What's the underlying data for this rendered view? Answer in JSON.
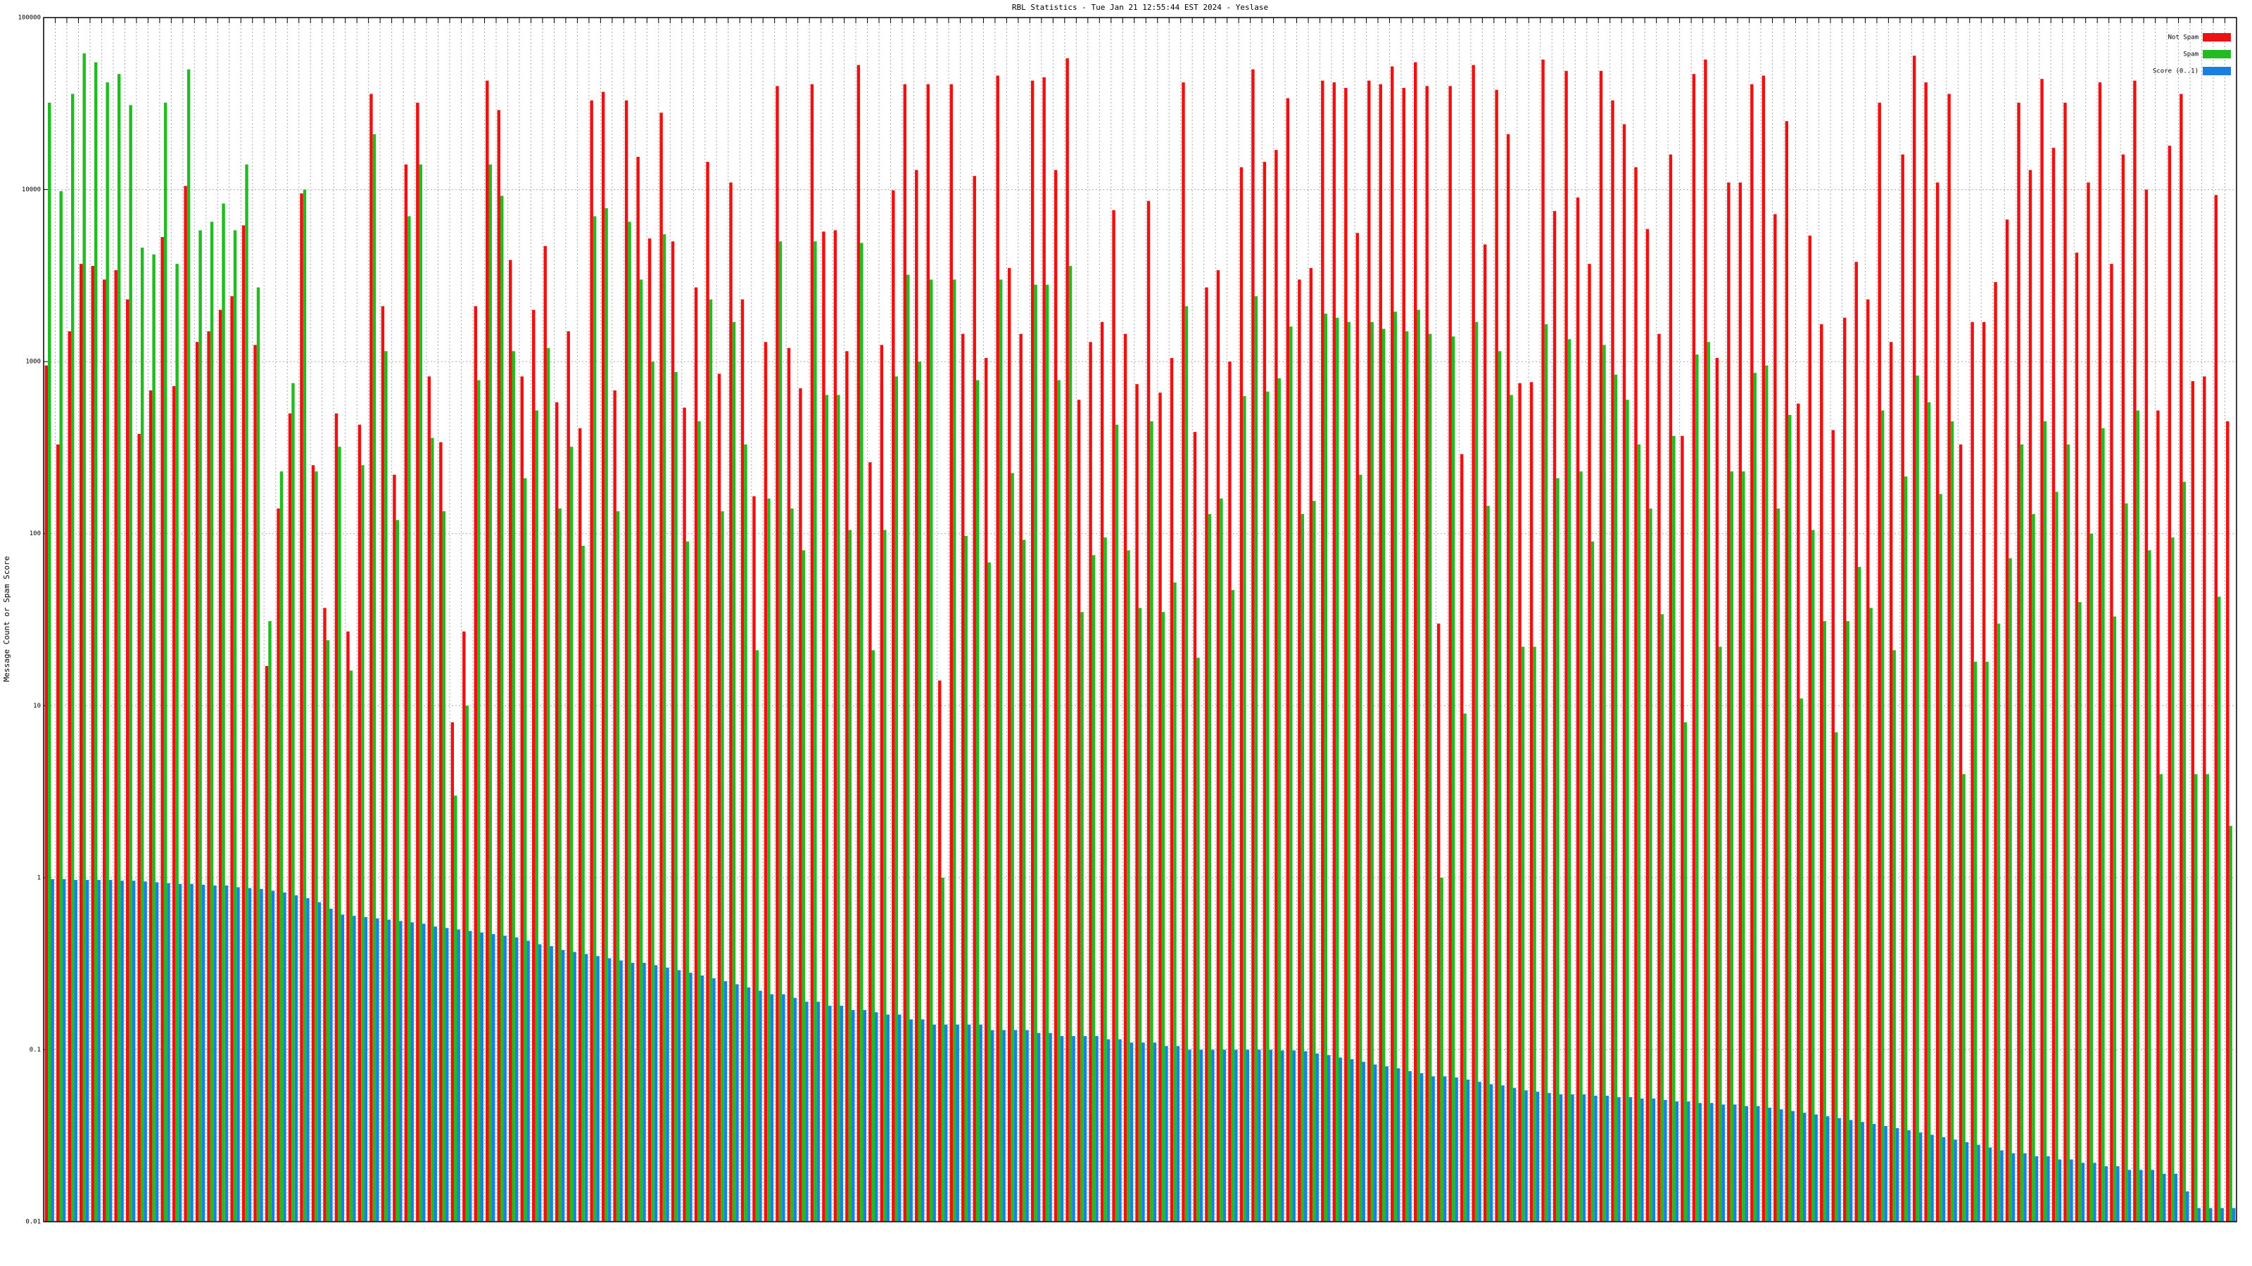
{
  "chart_data": {
    "type": "bar",
    "title": "RBL Statistics - Tue Jan 21 12:55:44 EST 2024 - Yeslase",
    "y_label": "Message Count or Spam Score",
    "yscale": "log",
    "grid": true,
    "legend": "upper right",
    "ylim": [
      0.01,
      100000
    ],
    "yticks": [
      0.01,
      0.1,
      1,
      10,
      100,
      1000,
      10000,
      100000
    ],
    "categories": [
      null,
      null,
      null,
      null,
      null,
      null,
      null,
      null,
      null,
      null,
      null,
      null,
      null,
      null,
      null,
      null,
      null,
      null,
      null,
      null,
      null,
      null,
      null,
      null,
      null,
      null,
      null,
      null,
      null,
      null,
      null,
      null,
      null,
      null,
      null,
      null,
      null,
      null,
      null,
      null,
      null,
      null,
      null,
      null,
      null,
      null,
      null,
      null,
      null,
      null,
      null,
      null,
      null,
      null,
      null,
      null,
      null,
      null,
      null,
      null,
      null,
      null,
      null,
      null,
      null,
      null,
      null,
      null,
      null,
      null,
      null,
      null,
      null,
      null,
      null,
      null,
      null,
      null,
      null,
      null,
      null,
      null,
      null,
      null,
      null,
      null,
      null,
      null,
      null,
      null,
      null,
      null,
      null,
      null,
      null,
      null,
      null,
      null,
      null,
      null,
      null,
      null,
      null,
      null,
      null,
      null,
      null,
      null,
      null,
      null,
      null,
      null,
      null,
      null,
      null,
      null,
      null,
      null,
      null,
      null,
      null,
      null,
      null,
      null,
      null,
      null,
      null,
      null,
      null,
      null,
      null,
      null,
      null,
      null,
      null,
      null,
      null,
      null,
      null,
      null,
      null,
      null,
      null,
      null,
      null,
      null,
      null,
      null,
      null,
      null,
      null,
      null,
      null,
      null,
      null,
      null,
      null,
      null,
      null,
      null,
      null,
      null,
      null,
      null,
      null,
      null,
      null,
      null,
      null,
      null,
      null,
      null,
      null,
      null,
      null,
      null,
      null,
      null,
      null,
      null,
      null,
      null,
      null,
      null,
      null,
      null,
      null,
      null,
      null
    ],
    "series": [
      {
        "name": "Not Spam",
        "color": "#ee1111",
        "values": [
          950,
          330,
          1500,
          3700,
          3600,
          3000,
          3400,
          2300,
          380,
          680,
          5300,
          720,
          10500,
          1300,
          1500,
          2000,
          2400,
          6200,
          1250,
          17,
          140,
          500,
          9500,
          250,
          37,
          500,
          27,
          430,
          36000,
          2100,
          220,
          14000,
          32000,
          820,
          340,
          8,
          27,
          2100,
          43000,
          29000,
          3900,
          820,
          2000,
          4700,
          580,
          1500,
          410,
          33000,
          37000,
          680,
          33000,
          15500,
          5200,
          28000,
          5000,
          540,
          2700,
          14500,
          850,
          11000,
          2300,
          165,
          1300,
          40000,
          1200,
          700,
          41000,
          5700,
          5800,
          1150,
          53000,
          260,
          1250,
          9900,
          41000,
          13000,
          41000,
          14,
          41000,
          1450,
          12000,
          1050,
          46000,
          3500,
          1450,
          43000,
          45000,
          13000,
          58000,
          600,
          1300,
          1700,
          7600,
          1450,
          740,
          8600,
          660,
          1050,
          42000,
          390,
          2700,
          3400,
          1000,
          13500,
          50000,
          14500,
          17000,
          34000,
          3000,
          3500,
          43000,
          42000,
          39000,
          5600,
          43000,
          41000,
          52000,
          39000,
          55000,
          40000,
          30,
          40000,
          290,
          53000,
          4800,
          38000,
          21000,
          750,
          760,
          57000,
          7500,
          49000,
          9000,
          3700,
          49000,
          33000,
          24000,
          13500,
          5900,
          1450,
          16000,
          370,
          47000,
          57000,
          1050,
          11000,
          11000,
          41000,
          46000,
          7200,
          25000,
          570,
          5400,
          1650,
          400,
          1800,
          3800,
          2300,
          32000,
          1300,
          16000,
          60000,
          42000,
          11000,
          36000,
          330,
          1700,
          1700,
          2900,
          6700,
          32000,
          13000,
          44000,
          17500,
          32000,
          4300,
          11000,
          42000,
          3700,
          16000,
          43000,
          10000,
          520,
          18000,
          36000,
          770,
          820,
          9300,
          450
        ]
      },
      {
        "name": "Spam",
        "color": "#22bb22",
        "values": [
          32000,
          9800,
          36000,
          62000,
          55000,
          42000,
          47000,
          31000,
          4600,
          4200,
          32000,
          3700,
          50000,
          5800,
          6500,
          8300,
          5800,
          14000,
          2700,
          31,
          230,
          750,
          10000,
          230,
          24,
          320,
          16,
          250,
          21000,
          1150,
          120,
          7000,
          14000,
          360,
          135,
          3,
          10,
          780,
          14000,
          9200,
          1150,
          210,
          520,
          1200,
          140,
          320,
          85,
          7000,
          7800,
          135,
          6500,
          3000,
          1000,
          5500,
          870,
          90,
          450,
          2300,
          135,
          1700,
          330,
          21,
          160,
          5000,
          140,
          80,
          5000,
          640,
          640,
          105,
          4900,
          21,
          105,
          820,
          3200,
          1000,
          3000,
          1,
          3000,
          97,
          780,
          68,
          3000,
          225,
          92,
          2800,
          2800,
          780,
          3600,
          35,
          75,
          95,
          430,
          80,
          37,
          450,
          35,
          52,
          2100,
          19,
          130,
          160,
          47,
          630,
          2400,
          670,
          800,
          1600,
          130,
          155,
          1900,
          1800,
          1700,
          220,
          1700,
          1550,
          1950,
          1500,
          2000,
          1450,
          1,
          1400,
          9,
          1700,
          145,
          1150,
          640,
          22,
          22,
          1650,
          210,
          1350,
          230,
          90,
          1250,
          840,
          600,
          330,
          140,
          34,
          370,
          8,
          1100,
          1300,
          22,
          230,
          230,
          860,
          950,
          140,
          490,
          11,
          105,
          31,
          7,
          31,
          64,
          37,
          520,
          21,
          215,
          830,
          580,
          170,
          450,
          4,
          18,
          18,
          30,
          72,
          330,
          130,
          450,
          175,
          330,
          40,
          100,
          410,
          33,
          150,
          520,
          80,
          4,
          95,
          200,
          4,
          4,
          43,
          2
        ]
      },
      {
        "name": "Score (0..1)",
        "color": "#1a7fe0",
        "values": [
          0.98,
          0.98,
          0.97,
          0.97,
          0.97,
          0.97,
          0.96,
          0.96,
          0.95,
          0.94,
          0.93,
          0.92,
          0.92,
          0.91,
          0.9,
          0.9,
          0.88,
          0.87,
          0.86,
          0.84,
          0.82,
          0.79,
          0.76,
          0.72,
          0.66,
          0.61,
          0.6,
          0.59,
          0.58,
          0.57,
          0.56,
          0.55,
          0.54,
          0.52,
          0.51,
          0.5,
          0.49,
          0.48,
          0.47,
          0.46,
          0.45,
          0.43,
          0.41,
          0.4,
          0.38,
          0.37,
          0.36,
          0.35,
          0.34,
          0.33,
          0.32,
          0.32,
          0.31,
          0.3,
          0.29,
          0.28,
          0.27,
          0.26,
          0.25,
          0.24,
          0.23,
          0.22,
          0.21,
          0.21,
          0.2,
          0.19,
          0.19,
          0.18,
          0.18,
          0.17,
          0.17,
          0.165,
          0.16,
          0.16,
          0.15,
          0.15,
          0.14,
          0.14,
          0.14,
          0.14,
          0.14,
          0.13,
          0.13,
          0.13,
          0.13,
          0.125,
          0.125,
          0.12,
          0.12,
          0.12,
          0.12,
          0.115,
          0.115,
          0.11,
          0.11,
          0.11,
          0.105,
          0.105,
          0.1,
          0.1,
          0.1,
          0.1,
          0.1,
          0.1,
          0.1,
          0.1,
          0.099,
          0.099,
          0.098,
          0.095,
          0.093,
          0.09,
          0.088,
          0.085,
          0.082,
          0.08,
          0.078,
          0.075,
          0.073,
          0.07,
          0.07,
          0.069,
          0.067,
          0.065,
          0.063,
          0.062,
          0.06,
          0.058,
          0.057,
          0.056,
          0.055,
          0.055,
          0.055,
          0.054,
          0.054,
          0.053,
          0.053,
          0.052,
          0.052,
          0.051,
          0.05,
          0.05,
          0.049,
          0.049,
          0.048,
          0.048,
          0.047,
          0.047,
          0.046,
          0.045,
          0.044,
          0.043,
          0.042,
          0.041,
          0.04,
          0.039,
          0.038,
          0.037,
          0.036,
          0.035,
          0.034,
          0.033,
          0.032,
          0.031,
          0.03,
          0.029,
          0.028,
          0.027,
          0.026,
          0.025,
          0.025,
          0.024,
          0.024,
          0.023,
          0.023,
          0.022,
          0.022,
          0.021,
          0.021,
          0.02,
          0.02,
          0.02,
          0.019,
          0.019,
          0.015,
          0.012,
          0.012,
          0.012,
          0.012
        ]
      }
    ]
  }
}
